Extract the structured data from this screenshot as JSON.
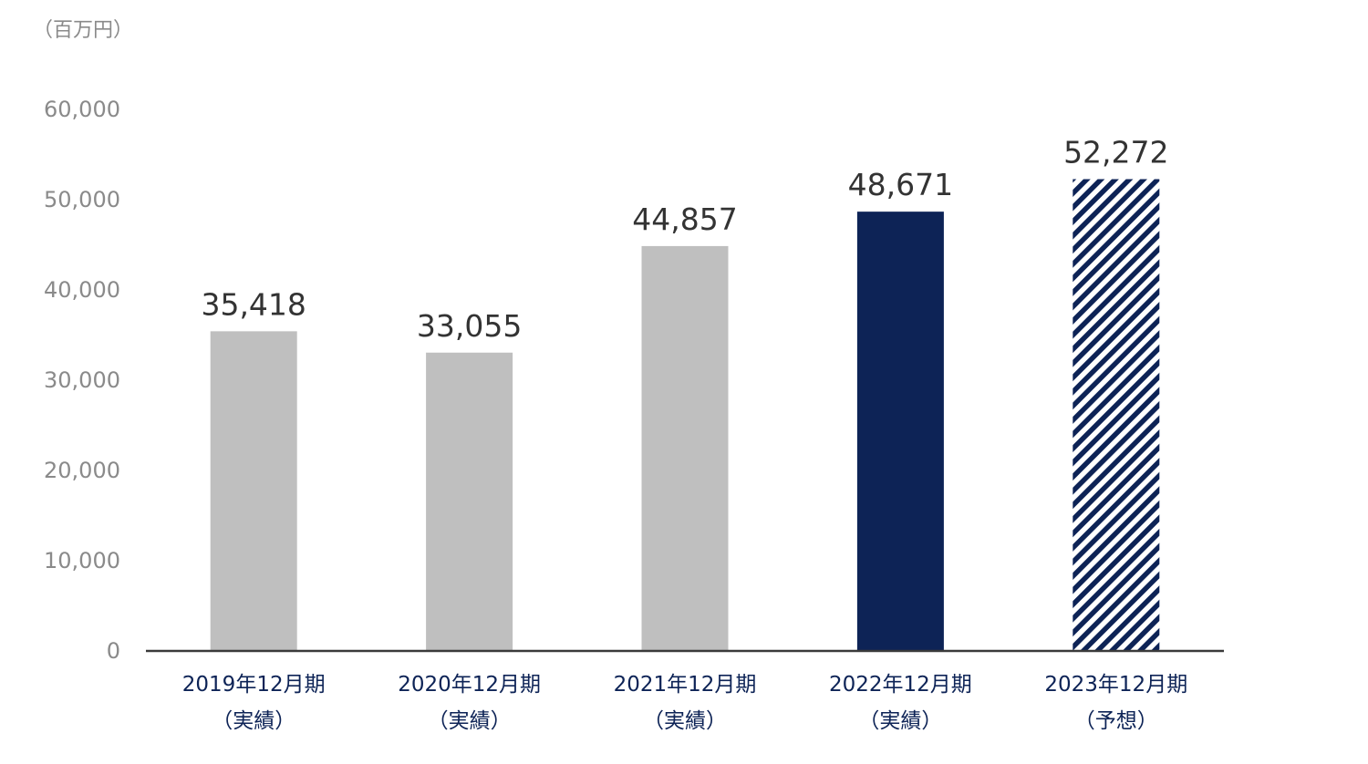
{
  "chart_data": {
    "type": "bar",
    "unit_label": "（百万円）",
    "categories": [
      [
        "2019年12月期",
        "（実績）"
      ],
      [
        "2020年12月期",
        "（実績）"
      ],
      [
        "2021年12月期",
        "（実績）"
      ],
      [
        "2022年12月期",
        "（実績）"
      ],
      [
        "2023年12月期",
        "（予想）"
      ]
    ],
    "values": [
      35418,
      33055,
      44857,
      48671,
      52272
    ],
    "value_labels": [
      "35,418",
      "33,055",
      "44,857",
      "48,671",
      "52,272"
    ],
    "bar_styles": [
      "actual",
      "actual",
      "actual",
      "highlight",
      "forecast"
    ],
    "ylim": [
      0,
      60000
    ],
    "yticks": [
      0,
      10000,
      20000,
      30000,
      40000,
      50000,
      60000
    ],
    "ytick_labels": [
      "0",
      "10,000",
      "20,000",
      "30,000",
      "40,000",
      "50,000",
      "60,000"
    ],
    "grid": false,
    "colors": {
      "actual": "#bfbfbf",
      "highlight": "#0d2356",
      "forecast": "#0d2356",
      "axis": "#3a3a3a",
      "tick_text": "#8a8a8a",
      "value_text": "#333333",
      "category_text": "#0d2356"
    }
  }
}
